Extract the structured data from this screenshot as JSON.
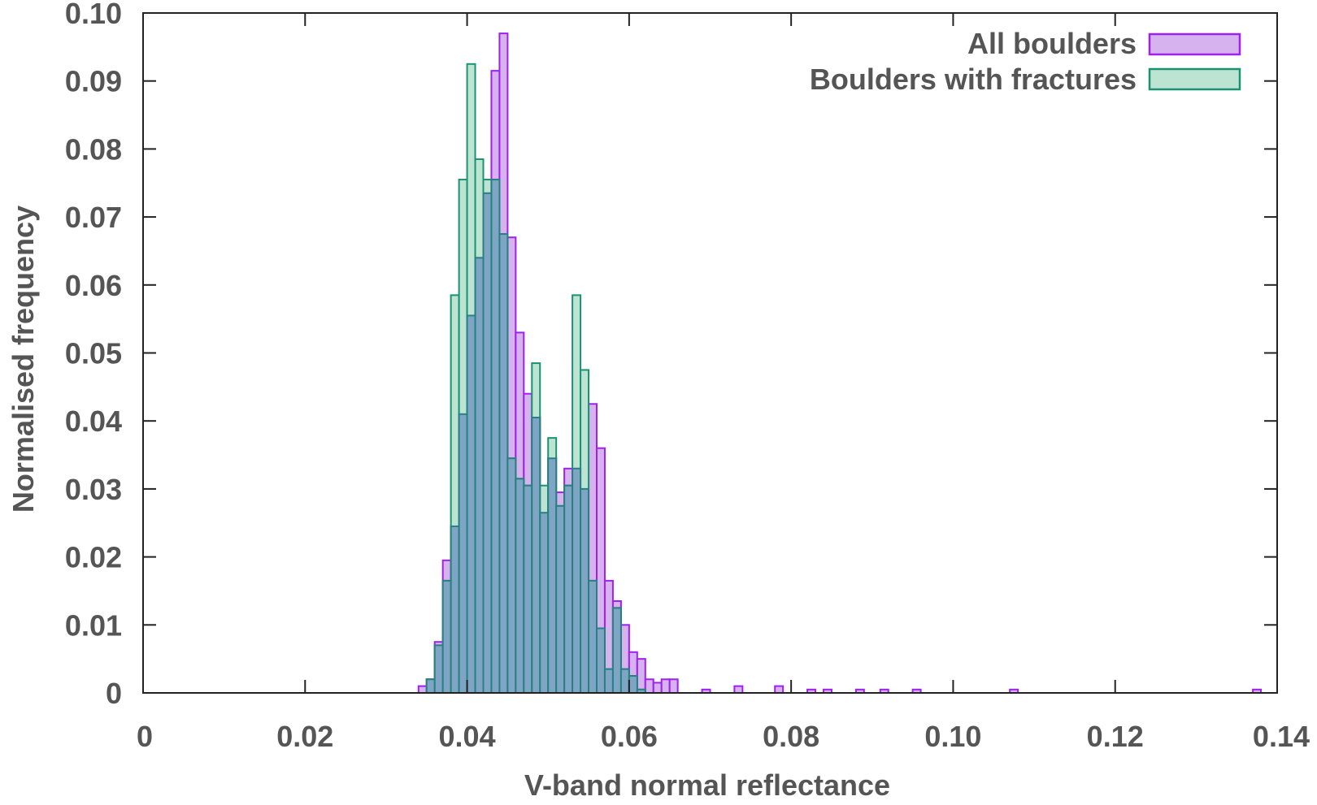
{
  "chart_data": {
    "type": "bar",
    "title": "",
    "xlabel": "V-band normal reflectance",
    "ylabel": "Normalised frequency",
    "xlim": [
      0,
      0.14
    ],
    "ylim": [
      0,
      0.1
    ],
    "bin_width": 0.001,
    "x_ticks": [
      0,
      0.02,
      0.04,
      0.06,
      0.08,
      0.1,
      0.12,
      0.14
    ],
    "x_tick_labels": [
      "0",
      "0.02",
      "0.04",
      "0.06",
      "0.08",
      "0.10",
      "0.12",
      "0.14"
    ],
    "y_ticks": [
      0,
      0.01,
      0.02,
      0.03,
      0.04,
      0.05,
      0.06,
      0.07,
      0.08,
      0.09,
      0.1
    ],
    "y_tick_labels": [
      "0",
      "0.01",
      "0.02",
      "0.03",
      "0.04",
      "0.05",
      "0.06",
      "0.07",
      "0.08",
      "0.09",
      "0.10"
    ],
    "grid": false,
    "legend_position": "top-right",
    "series": [
      {
        "name": "All boulders",
        "fill": "#d6b3ee",
        "stroke": "#a020f0",
        "x": [
          0.034,
          0.035,
          0.036,
          0.037,
          0.038,
          0.039,
          0.04,
          0.041,
          0.042,
          0.043,
          0.044,
          0.045,
          0.046,
          0.047,
          0.048,
          0.049,
          0.05,
          0.051,
          0.052,
          0.053,
          0.054,
          0.055,
          0.056,
          0.057,
          0.058,
          0.059,
          0.06,
          0.061,
          0.062,
          0.063,
          0.064,
          0.065,
          0.069,
          0.073,
          0.078,
          0.082,
          0.084,
          0.088,
          0.091,
          0.095,
          0.107,
          0.137
        ],
        "values": [
          0.001,
          0.002,
          0.0075,
          0.0195,
          0.0245,
          0.041,
          0.0555,
          0.064,
          0.0735,
          0.0915,
          0.097,
          0.067,
          0.053,
          0.044,
          0.0405,
          0.0265,
          0.0345,
          0.0295,
          0.033,
          0.033,
          0.03,
          0.0425,
          0.036,
          0.0165,
          0.0135,
          0.01,
          0.006,
          0.005,
          0.002,
          0.0015,
          0.002,
          0.002,
          0.0005,
          0.001,
          0.001,
          0.0005,
          0.0005,
          0.0005,
          0.0005,
          0.0005,
          0.0005,
          0.0005
        ]
      },
      {
        "name": "Boulders with fractures",
        "fill": "#bde3d2",
        "stroke": "#1a9470",
        "x": [
          0.035,
          0.036,
          0.037,
          0.038,
          0.039,
          0.04,
          0.041,
          0.042,
          0.043,
          0.044,
          0.045,
          0.046,
          0.047,
          0.048,
          0.049,
          0.05,
          0.051,
          0.052,
          0.053,
          0.054,
          0.055,
          0.056,
          0.057,
          0.058,
          0.059,
          0.06,
          0.061
        ],
        "values": [
          0.002,
          0.007,
          0.0165,
          0.0585,
          0.0755,
          0.0925,
          0.0785,
          0.0755,
          0.0755,
          0.0675,
          0.0345,
          0.0315,
          0.0305,
          0.0485,
          0.0305,
          0.0375,
          0.0275,
          0.0305,
          0.0585,
          0.0475,
          0.0165,
          0.0095,
          0.0035,
          0.0125,
          0.0035,
          0.0025,
          0.0005
        ]
      }
    ]
  }
}
